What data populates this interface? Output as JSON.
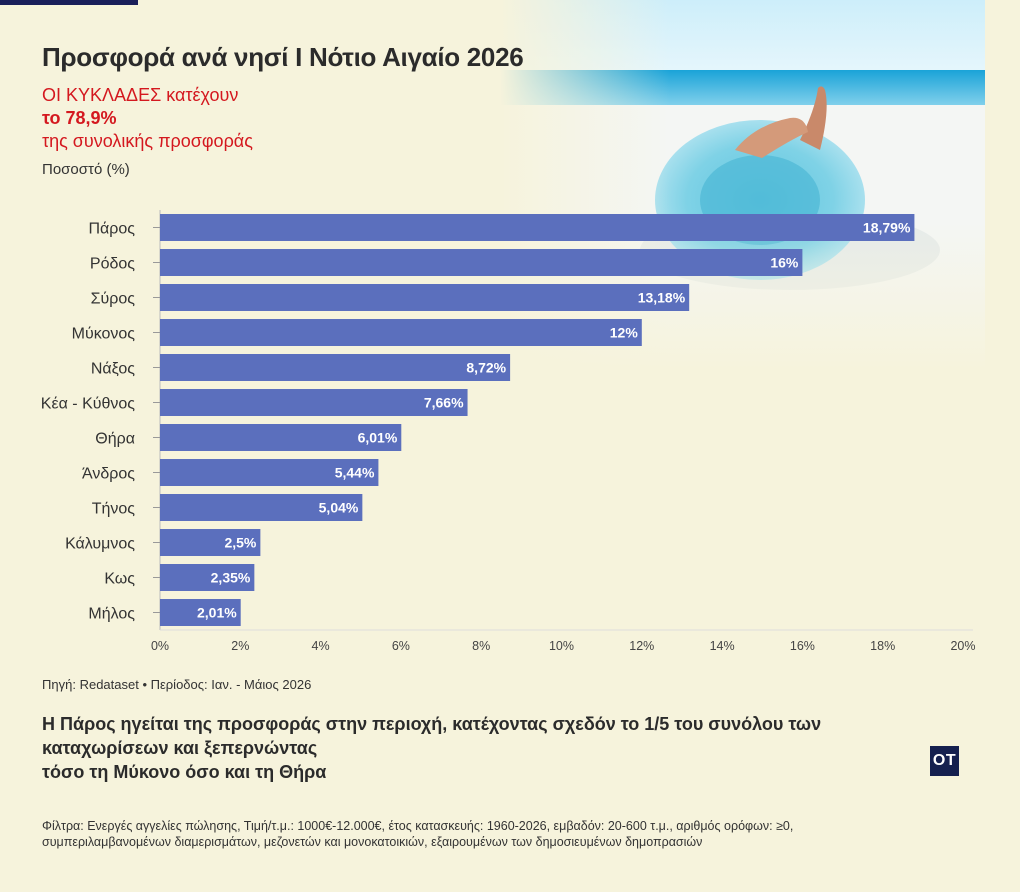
{
  "header": {
    "title": "Προσφορά ανά νησί Ι Νότιο Αιγαίο 2026",
    "subtitle_line1": "ΟΙ ΚΥΚΛΑΔΕΣ κατέχουν",
    "subtitle_line2": "το 78,9%",
    "subtitle_line3": "της συνολικής προσφοράς",
    "unit_label": "Ποσοστό (%)"
  },
  "chart_data": {
    "type": "bar",
    "orientation": "horizontal",
    "categories": [
      "Πάρος",
      "Ρόδος",
      "Σύρος",
      "Μύκονος",
      "Νάξος",
      "Κέα - Κύθνος",
      "Θήρα",
      "Άνδρος",
      "Τήνος",
      "Κάλυμνος",
      "Κως",
      "Μήλος"
    ],
    "values": [
      18.79,
      16,
      13.18,
      12,
      8.72,
      7.66,
      6.01,
      5.44,
      5.04,
      2.5,
      2.35,
      2.01
    ],
    "value_labels": [
      "18,79%",
      "16%",
      "13,18%",
      "12%",
      "8,72%",
      "7,66%",
      "6,01%",
      "5,44%",
      "5,04%",
      "2,5%",
      "2,35%",
      "2,01%"
    ],
    "x_ticks": [
      "0%",
      "2%",
      "4%",
      "6%",
      "8%",
      "10%",
      "12%",
      "14%",
      "16%",
      "18%",
      "20%"
    ],
    "xlim": [
      0,
      20
    ],
    "grid": false,
    "bar_color": "#5b6fbd"
  },
  "footer": {
    "source": "Πηγή: Redataset • Περίοδος: Ιαν. - Μάιος 2026",
    "note_line1": "Η Πάρος ηγείται της προσφοράς στην περιοχή, κατέχοντας σχεδόν το 1/5 του συνόλου των",
    "note_line2": "καταχωρίσεων και ξεπερνώντας",
    "note_line3": "τόσο τη Μύκονο όσο και τη Θήρα",
    "logo": "OT",
    "filters_line1": "Φίλτρα: Ενεργές αγγελίες πώλησης, Τιμή/τ.μ.: 1000€-12.000€, έτος κατασκευής: 1960-2026, εμβαδόν: 20-600 τ.μ., αριθμός ορόφων: ≥0,",
    "filters_line2": "συμπεριλαμβανομένων διαμερισμάτων, μεζονετών και μονοκατοικιών, εξαιρουμένων των δημοσιευμένων δημοπρασιών"
  }
}
